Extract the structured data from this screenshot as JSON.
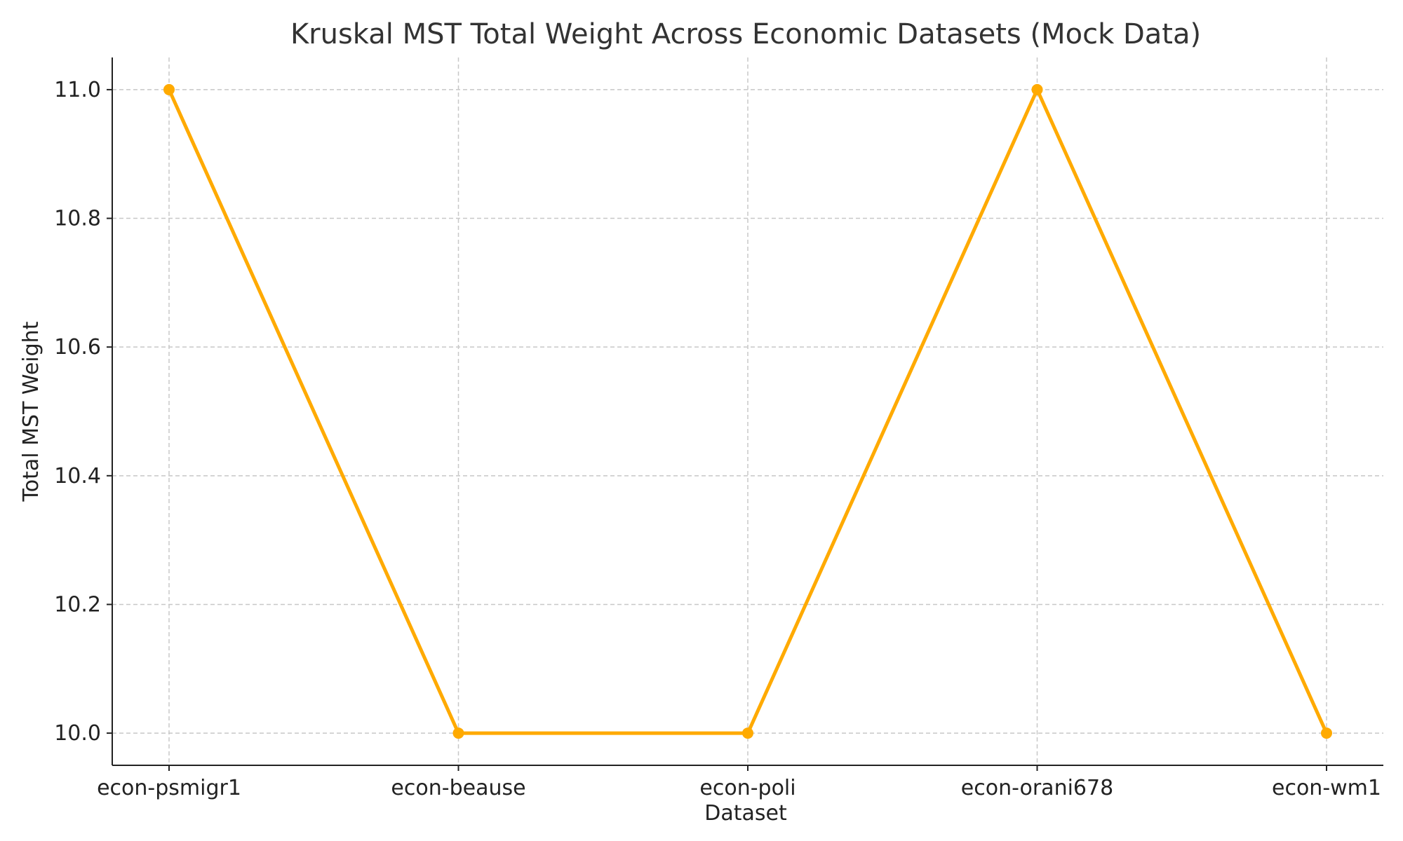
{
  "chart_data": {
    "type": "line",
    "title": "Kruskal MST Total Weight Across Economic Datasets (Mock Data)",
    "xlabel": "Dataset",
    "ylabel": "Total MST Weight",
    "categories": [
      "econ-psmigr1",
      "econ-beause",
      "econ-poli",
      "econ-orani678",
      "econ-wm1"
    ],
    "series": [
      {
        "values": [
          11.0,
          10.0,
          10.0,
          11.0,
          10.0
        ],
        "color": "#FFAA00"
      }
    ],
    "ylim": [
      9.95,
      11.05
    ],
    "yticks": [
      10.0,
      10.2,
      10.4,
      10.6,
      10.8,
      11.0
    ],
    "ytick_labels": [
      "10.0",
      "10.2",
      "10.4",
      "10.6",
      "10.8",
      "11.0"
    ],
    "grid": true,
    "legend": "none",
    "axis_color": "#222222",
    "grid_color": "#c8c8c8"
  }
}
